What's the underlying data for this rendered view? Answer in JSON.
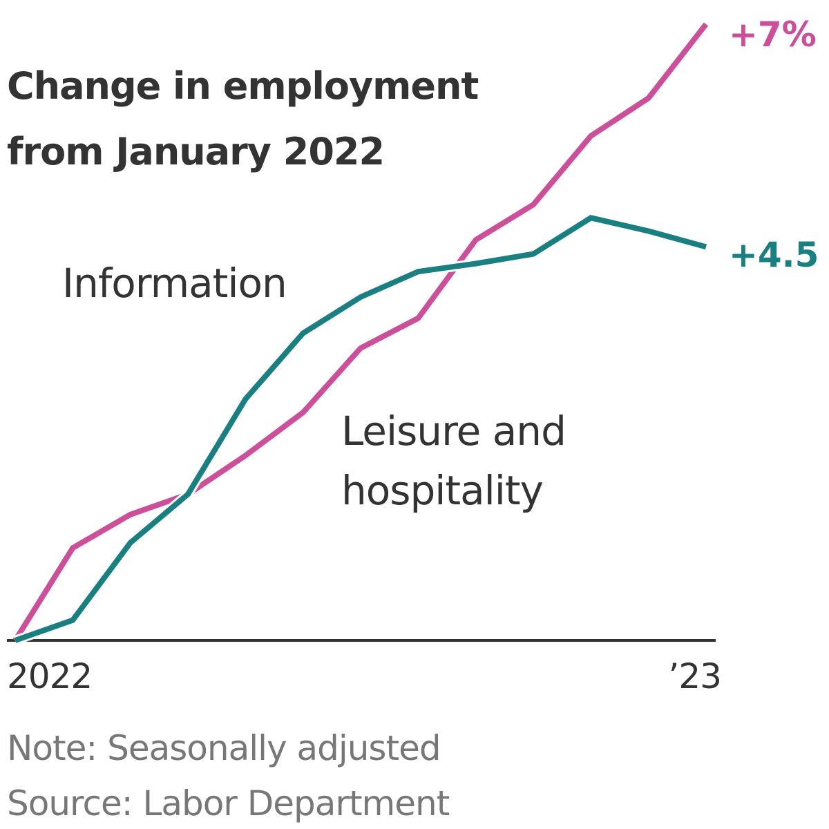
{
  "chart_data": {
    "type": "line",
    "title": "Change in employment from January 2022",
    "title_lines": [
      "Change in employment",
      "from January 2022"
    ],
    "xlabel": "",
    "ylabel": "",
    "x": [
      "Jan 2022",
      "Feb 2022",
      "Mar 2022",
      "Apr 2022",
      "May 2022",
      "Jun 2022",
      "Jul 2022",
      "Aug 2022",
      "Sep 2022",
      "Oct 2022",
      "Nov 2022",
      "Dec 2022",
      "Jan 2023"
    ],
    "x_tick_labels": [
      {
        "index": 0,
        "label": "2022"
      },
      {
        "index": 12,
        "label": "’23"
      }
    ],
    "ylim": [
      0,
      7
    ],
    "grid": false,
    "units": "%",
    "series": [
      {
        "name": "Leisure and hospitality",
        "label_lines": [
          "Leisure and",
          "hospitality"
        ],
        "color": "#cc4f9a",
        "end_label": "+7%",
        "values": [
          0,
          1.05,
          1.43,
          1.66,
          2.1,
          2.59,
          3.32,
          3.66,
          4.55,
          4.95,
          5.73,
          6.16,
          7.0
        ]
      },
      {
        "name": "Information",
        "label_lines": [
          "Information"
        ],
        "color": "#1a7f80",
        "end_label": "+4.5",
        "values": [
          0,
          0.23,
          1.11,
          1.66,
          2.74,
          3.49,
          3.9,
          4.19,
          4.28,
          4.39,
          4.8,
          4.65,
          4.47
        ]
      }
    ],
    "annotations": [],
    "note": "Note: Seasonally adjusted",
    "source": "Source: Labor Department"
  },
  "colors": {
    "text": "#333333",
    "muted": "#777777",
    "axis": "#333333"
  }
}
